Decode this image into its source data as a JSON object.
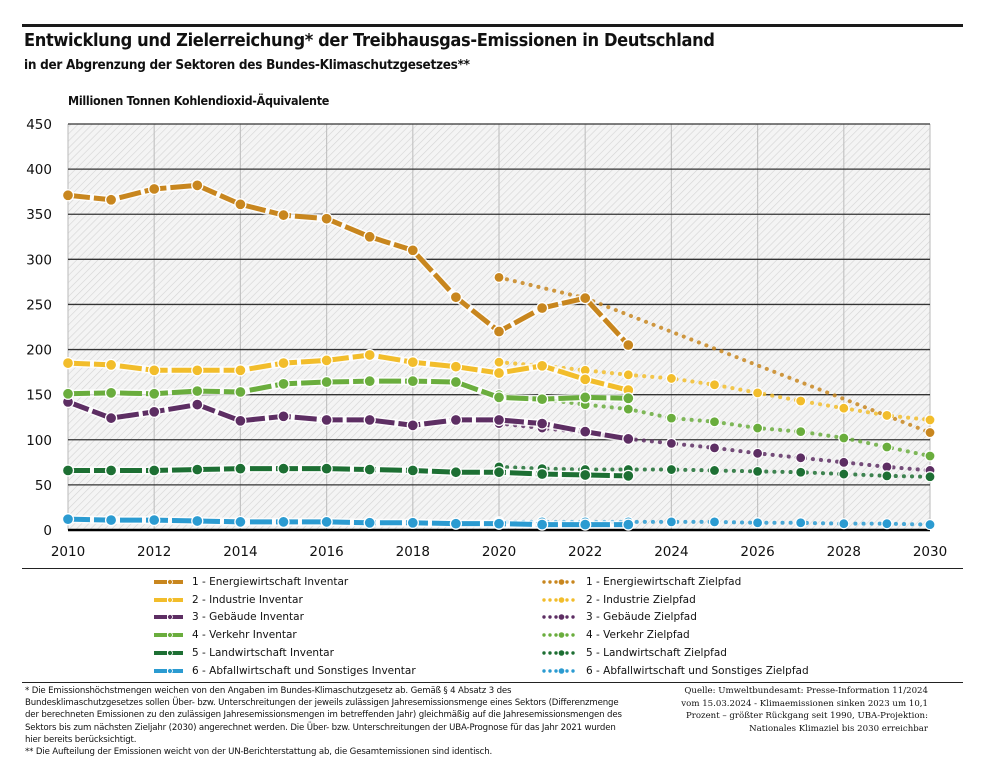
{
  "header": {
    "title": "Entwicklung und Zielerreichung* der Treibhausgas-Emissionen in Deutschland",
    "subtitle": "in der Abgrenzung der Sektoren des Bundes-Klimaschutzgesetzes**",
    "unit_label": "Millionen Tonnen Kohlendioxid-Äquivalente"
  },
  "chart_data": {
    "type": "line",
    "title": "Entwicklung und Zielerreichung* der Treibhausgas-Emissionen in Deutschland",
    "subtitle": "in der Abgrenzung der Sektoren des Bundes-Klimaschutzgesetzes**",
    "xlabel": "",
    "ylabel": "Millionen Tonnen Kohlendioxid-Äquivalente",
    "xlim": [
      2010,
      2030
    ],
    "ylim": [
      0,
      450
    ],
    "x_ticks": [
      2010,
      2012,
      2014,
      2016,
      2018,
      2020,
      2022,
      2024,
      2026,
      2028,
      2030
    ],
    "y_ticks": [
      0,
      50,
      100,
      150,
      200,
      250,
      300,
      350,
      400,
      450
    ],
    "grid": true,
    "legend_position": "bottom",
    "series": [
      {
        "name": "1 - Energiewirtschaft Inventar",
        "style": "solid",
        "color": "#c8861e",
        "x": [
          2010,
          2011,
          2012,
          2013,
          2014,
          2015,
          2016,
          2017,
          2018,
          2019,
          2020,
          2021,
          2022,
          2023
        ],
        "values": [
          371,
          366,
          378,
          382,
          361,
          349,
          345,
          325,
          310,
          258,
          220,
          246,
          257,
          205
        ]
      },
      {
        "name": "2 - Industrie Inventar",
        "style": "solid",
        "color": "#f2bd2b",
        "x": [
          2010,
          2011,
          2012,
          2013,
          2014,
          2015,
          2016,
          2017,
          2018,
          2019,
          2020,
          2021,
          2022,
          2023
        ],
        "values": [
          185,
          183,
          177,
          177,
          177,
          185,
          188,
          194,
          186,
          181,
          174,
          182,
          167,
          155
        ]
      },
      {
        "name": "3 - Gebäude Inventar",
        "style": "solid",
        "color": "#5d2e63",
        "x": [
          2010,
          2011,
          2012,
          2013,
          2014,
          2015,
          2016,
          2017,
          2018,
          2019,
          2020,
          2021,
          2022,
          2023
        ],
        "values": [
          142,
          124,
          131,
          139,
          121,
          126,
          122,
          122,
          116,
          122,
          122,
          118,
          109,
          101
        ]
      },
      {
        "name": "4 - Verkehr Inventar",
        "style": "solid",
        "color": "#6aad3d",
        "x": [
          2010,
          2011,
          2012,
          2013,
          2014,
          2015,
          2016,
          2017,
          2018,
          2019,
          2020,
          2021,
          2022,
          2023
        ],
        "values": [
          151,
          152,
          151,
          154,
          153,
          162,
          164,
          165,
          165,
          164,
          147,
          145,
          147,
          146
        ]
      },
      {
        "name": "5 - Landwirtschaft Inventar",
        "style": "solid",
        "color": "#1d6f33",
        "x": [
          2010,
          2011,
          2012,
          2013,
          2014,
          2015,
          2016,
          2017,
          2018,
          2019,
          2020,
          2021,
          2022,
          2023
        ],
        "values": [
          66,
          66,
          66,
          67,
          68,
          68,
          68,
          67,
          66,
          64,
          64,
          62,
          61,
          60
        ]
      },
      {
        "name": "6 - Abfallwirtschaft und Sonstiges Inventar",
        "style": "solid",
        "color": "#2b9bd1",
        "x": [
          2010,
          2011,
          2012,
          2013,
          2014,
          2015,
          2016,
          2017,
          2018,
          2019,
          2020,
          2021,
          2022,
          2023
        ],
        "values": [
          12,
          11,
          11,
          10,
          9,
          9,
          9,
          8,
          8,
          7,
          7,
          6,
          6,
          6
        ]
      },
      {
        "name": "1 - Energiewirtschaft Zielpfad",
        "style": "dotted",
        "color": "#c8861e",
        "x": [
          2020,
          2022,
          2030
        ],
        "values": [
          280,
          257,
          108
        ]
      },
      {
        "name": "2 - Industrie Zielpfad",
        "style": "dotted",
        "color": "#f2bd2b",
        "x": [
          2020,
          2021,
          2022,
          2023,
          2024,
          2025,
          2026,
          2027,
          2028,
          2029,
          2030
        ],
        "values": [
          186,
          182,
          177,
          172,
          168,
          161,
          152,
          143,
          135,
          127,
          122
        ]
      },
      {
        "name": "3 - Gebäude Zielpfad",
        "style": "dotted",
        "color": "#5d2e63",
        "x": [
          2020,
          2021,
          2022,
          2023,
          2024,
          2025,
          2026,
          2027,
          2028,
          2029,
          2030
        ],
        "values": [
          118,
          113,
          108,
          101,
          96,
          91,
          85,
          80,
          75,
          70,
          66
        ]
      },
      {
        "name": "4 - Verkehr Zielpfad",
        "style": "dotted",
        "color": "#6aad3d",
        "x": [
          2020,
          2021,
          2022,
          2023,
          2024,
          2025,
          2026,
          2027,
          2028,
          2029,
          2030
        ],
        "values": [
          150,
          145,
          139,
          134,
          124,
          120,
          113,
          109,
          102,
          92,
          82
        ]
      },
      {
        "name": "5 - Landwirtschaft Zielpfad",
        "style": "dotted",
        "color": "#1d6f33",
        "x": [
          2020,
          2021,
          2022,
          2023,
          2024,
          2025,
          2026,
          2027,
          2028,
          2029,
          2030
        ],
        "values": [
          70,
          68,
          67,
          67,
          67,
          66,
          65,
          64,
          62,
          60,
          59
        ]
      },
      {
        "name": "6 - Abfallwirtschaft und Sonstiges Zielpfad",
        "style": "dotted",
        "color": "#2b9bd1",
        "x": [
          2020,
          2021,
          2022,
          2023,
          2024,
          2025,
          2026,
          2027,
          2028,
          2029,
          2030
        ],
        "values": [
          9,
          9,
          9,
          9,
          9,
          9,
          8,
          8,
          7,
          7,
          6
        ]
      }
    ]
  },
  "legend": {
    "inventory": [
      {
        "label": "1 - Energiewirtschaft Inventar",
        "color": "#c8861e"
      },
      {
        "label": "2 - Industrie Inventar",
        "color": "#f2bd2b"
      },
      {
        "label": "3 - Gebäude Inventar",
        "color": "#5d2e63"
      },
      {
        "label": "4 - Verkehr Inventar",
        "color": "#6aad3d"
      },
      {
        "label": "5 - Landwirtschaft Inventar",
        "color": "#1d6f33"
      },
      {
        "label": "6 - Abfallwirtschaft und Sonstiges Inventar",
        "color": "#2b9bd1"
      }
    ],
    "target": [
      {
        "label": "1 - Energiewirtschaft Zielpfad",
        "color": "#c8861e"
      },
      {
        "label": "2 - Industrie Zielpfad",
        "color": "#f2bd2b"
      },
      {
        "label": "3 - Gebäude Zielpfad",
        "color": "#5d2e63"
      },
      {
        "label": "4 - Verkehr Zielpfad",
        "color": "#6aad3d"
      },
      {
        "label": "5 - Landwirtschaft Zielpfad",
        "color": "#1d6f33"
      },
      {
        "label": "6 - Abfallwirtschaft und Sonstiges Zielpfad",
        "color": "#2b9bd1"
      }
    ]
  },
  "footnotes": {
    "note1": "* Die Emissionshöchstmengen weichen von den Angaben im Bundes-Klimaschutzgesetz ab. Gemäß § 4 Absatz 3 des Bundesklimaschutzgesetzes sollen Über- bzw. Unterschreitungen der jeweils zulässigen Jahresemissionsmenge eines Sektors (Differenzmenge der berechneten Emissionen zu den zulässigen Jahresemissionsmengen im betreffenden Jahr) gleichmäßig auf die Jahresemissionsmengen des Sektors bis zum nächsten Zieljahr (2030) angerechnet werden. Die Über- bzw. Unterschreitungen der UBA-Prognose für das Jahr 2021 wurden hier bereits berücksichtigt.",
    "note2": "** Die Aufteilung der Emissionen weicht von der UN-Berichterstattung ab, die Gesamtemissionen sind identisch."
  },
  "source": {
    "line1": "Quelle: Umweltbundesamt: Presse-Information 11/2024",
    "line2": "vom 15.03.2024 - Klimaemissionen sinken 2023 um 10,1",
    "line3": "Prozent – größter Rückgang seit 1990, UBA-Projektion:",
    "line4": "Nationales Klimaziel bis 2030 erreichbar"
  }
}
